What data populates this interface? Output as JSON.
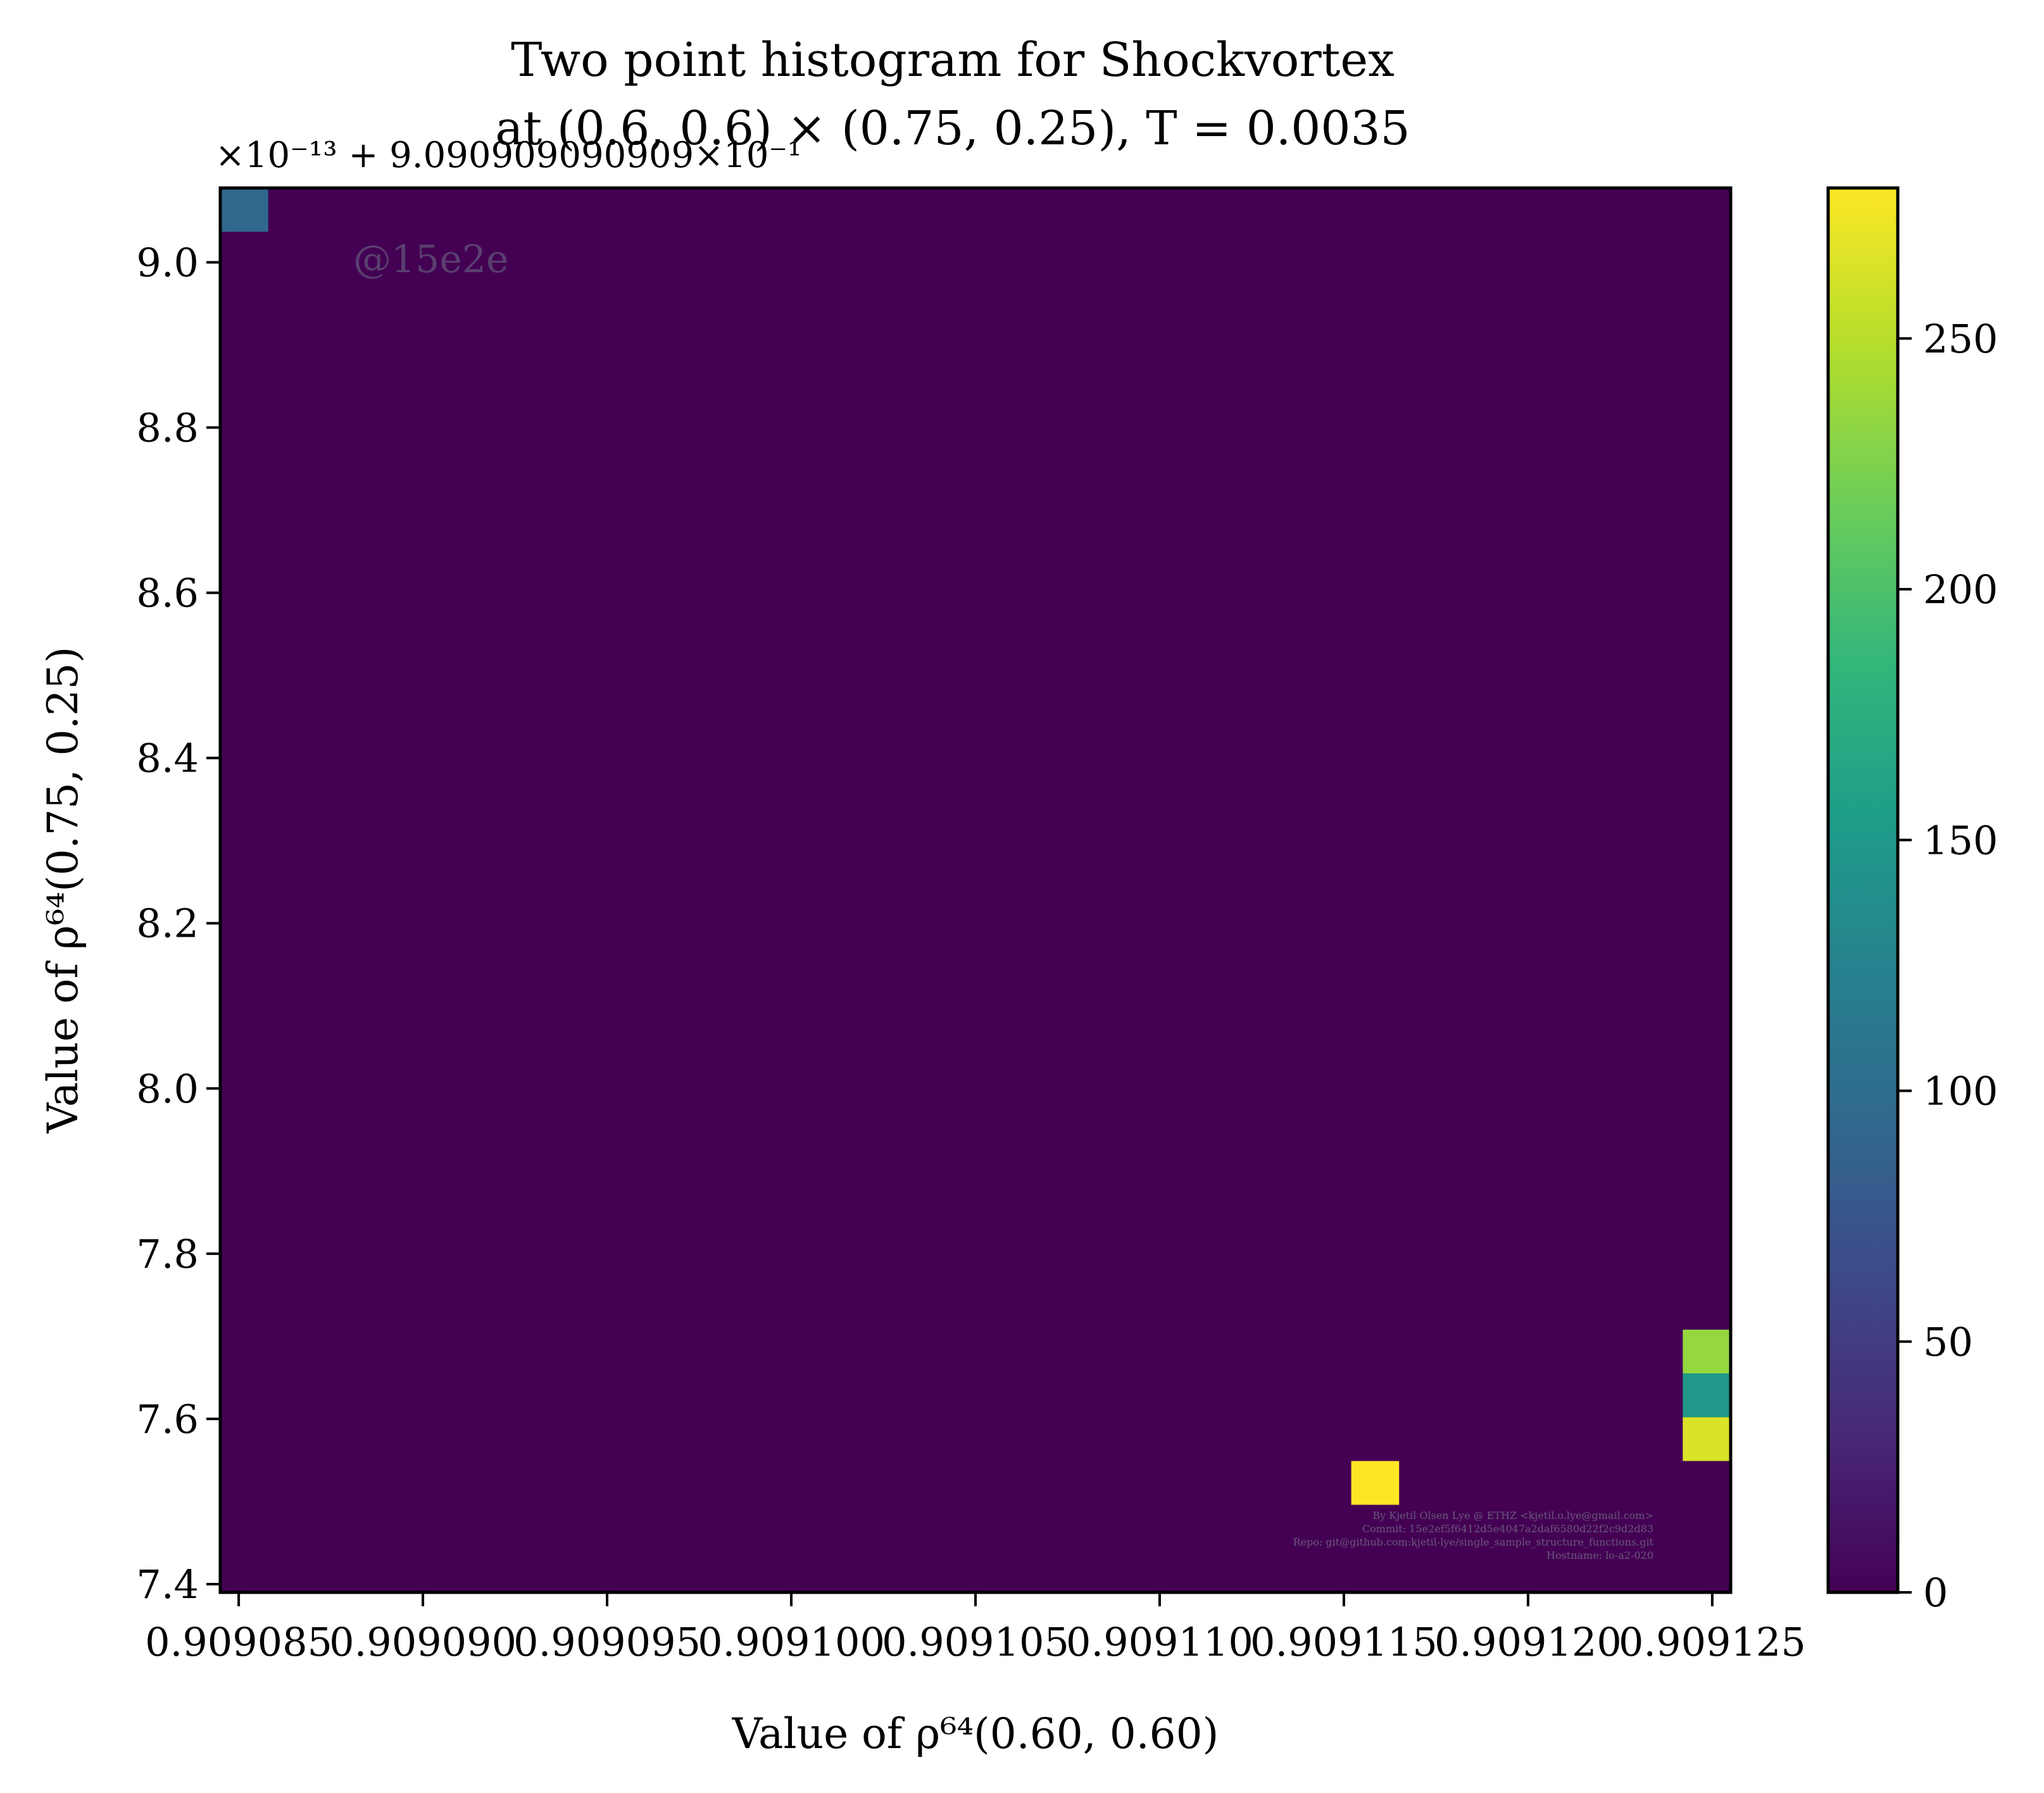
{
  "chart_data": {
    "type": "heatmap",
    "title_line1": "Two point histogram for Shockvortex",
    "title_line2": "at (0.6, 0.6) × (0.75, 0.25), T = 0.0035",
    "xlabel": "Value of ρ⁶⁴(0.60, 0.60)",
    "ylabel": "Value of ρ⁶⁴(0.75, 0.25)",
    "y_offset_label": "×10⁻¹³ + 9.090909090909×10⁻¹",
    "xlim": [
      0.9090845,
      0.9091255
    ],
    "ylim": [
      7.39,
      9.09
    ],
    "x_ticks": [
      0.909085,
      0.90909,
      0.909095,
      0.9091,
      0.909105,
      0.90911,
      0.909115,
      0.90912,
      0.909125
    ],
    "x_tick_labels": [
      "0.909085",
      "0.909090",
      "0.909095",
      "0.909100",
      "0.909105",
      "0.909110",
      "0.909115",
      "0.909120",
      "0.909125"
    ],
    "y_ticks": [
      7.4,
      7.6,
      7.8,
      8.0,
      8.2,
      8.4,
      8.6,
      8.8,
      9.0
    ],
    "y_tick_labels": [
      "7.4",
      "7.6",
      "7.8",
      "8.0",
      "8.2",
      "8.4",
      "8.6",
      "8.8",
      "9.0"
    ],
    "bins": 32,
    "background_value": 0,
    "cells": [
      {
        "x": [
          0.9090845,
          0.9090858
        ],
        "y": [
          9.037,
          9.09
        ],
        "value": 95
      },
      {
        "x": [
          0.9091152,
          0.9091165
        ],
        "y": [
          7.496,
          7.549
        ],
        "value": 280
      },
      {
        "x": [
          0.9091242,
          0.9091255
        ],
        "y": [
          7.655,
          7.708
        ],
        "value": 235
      },
      {
        "x": [
          0.9091242,
          0.9091255
        ],
        "y": [
          7.602,
          7.655
        ],
        "value": 150
      },
      {
        "x": [
          0.9091242,
          0.9091255
        ],
        "y": [
          7.549,
          7.602
        ],
        "value": 265
      }
    ],
    "colorbar": {
      "range": [
        0,
        280
      ],
      "ticks": [
        0,
        50,
        100,
        150,
        200,
        250
      ],
      "tick_labels": [
        "0",
        "50",
        "100",
        "150",
        "200",
        "250"
      ],
      "colormap": "viridis",
      "stops": [
        "#440154",
        "#482878",
        "#3e4989",
        "#31688e",
        "#26828e",
        "#1f9e89",
        "#35b779",
        "#6ece58",
        "#b5de2b",
        "#fde725"
      ]
    }
  },
  "watermark": "@15e2e",
  "credits": [
    "By Kjetil Olsen Lye @ ETHZ <kjetil.o.lye@gmail.com>",
    "Commit: 15e2ef5f6412d5e4047a2daf6580d22f2c9d2d83",
    "Repo: git@github.com:kjetil-lye/single_sample_structure_functions.git",
    "Hostname: lo-a2-020"
  ]
}
